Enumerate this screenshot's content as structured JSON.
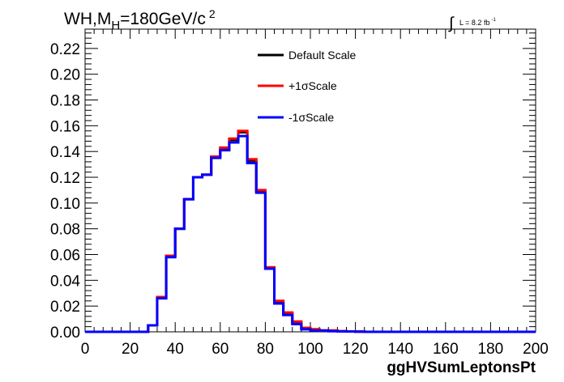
{
  "chart_data": {
    "type": "line",
    "title_parts": {
      "main": "WH,M",
      "sub": "H",
      "rest": "=180GeV/c",
      "sup": "2"
    },
    "lumi_label": {
      "symbol": "∫",
      "text": "L = 8.2 fb",
      "sup": "-1"
    },
    "xlabel": "ggHVSumLeptonsPt",
    "ylabel": "",
    "xlim": [
      0,
      200
    ],
    "ylim": [
      0,
      0.235
    ],
    "bin_width": 4,
    "x_ticks": [
      "0",
      "20",
      "40",
      "60",
      "80",
      "100",
      "120",
      "140",
      "160",
      "180",
      "200"
    ],
    "y_ticks": [
      "0.00",
      "0.02",
      "0.04",
      "0.06",
      "0.08",
      "0.10",
      "0.12",
      "0.14",
      "0.16",
      "0.18",
      "0.20",
      "0.22"
    ],
    "legend_position": "top-center",
    "series": [
      {
        "name": "Default Scale",
        "color": "#000000",
        "values": [
          0,
          0,
          0,
          0,
          0,
          0,
          0,
          0.005,
          0.027,
          0.059,
          0.08,
          0.103,
          0.12,
          0.122,
          0.136,
          0.142,
          0.149,
          0.155,
          0.133,
          0.109,
          0.05,
          0.023,
          0.014,
          0.007,
          0.003,
          0.002,
          0.001,
          0.001,
          0.0005,
          0.0003,
          0.0002,
          0,
          0,
          0,
          0,
          0,
          0,
          0,
          0,
          0,
          0,
          0,
          0,
          0,
          0,
          0,
          0,
          0,
          0,
          0
        ]
      },
      {
        "name": "+1σScale",
        "color": "#ff0000",
        "values": [
          0,
          0,
          0,
          0,
          0,
          0,
          0,
          0.005,
          0.027,
          0.059,
          0.08,
          0.103,
          0.12,
          0.122,
          0.136,
          0.143,
          0.15,
          0.156,
          0.134,
          0.11,
          0.05,
          0.024,
          0.015,
          0.008,
          0.003,
          0.002,
          0.001,
          0.001,
          0.0005,
          0.0003,
          0.0002,
          0,
          0,
          0,
          0,
          0,
          0,
          0,
          0,
          0,
          0,
          0,
          0,
          0,
          0,
          0,
          0,
          0,
          0,
          0
        ]
      },
      {
        "name": "-1σScale",
        "color": "#0000ff",
        "values": [
          0,
          0,
          0,
          0,
          0,
          0,
          0,
          0.005,
          0.026,
          0.058,
          0.08,
          0.103,
          0.12,
          0.122,
          0.135,
          0.141,
          0.147,
          0.152,
          0.131,
          0.108,
          0.049,
          0.022,
          0.013,
          0.006,
          0.002,
          0.001,
          0.001,
          0.0005,
          0.0003,
          0.0002,
          0.0001,
          0,
          0,
          0,
          0,
          0,
          0,
          0,
          0,
          0,
          0,
          0,
          0,
          0,
          0,
          0,
          0,
          0,
          0,
          0
        ]
      }
    ]
  }
}
